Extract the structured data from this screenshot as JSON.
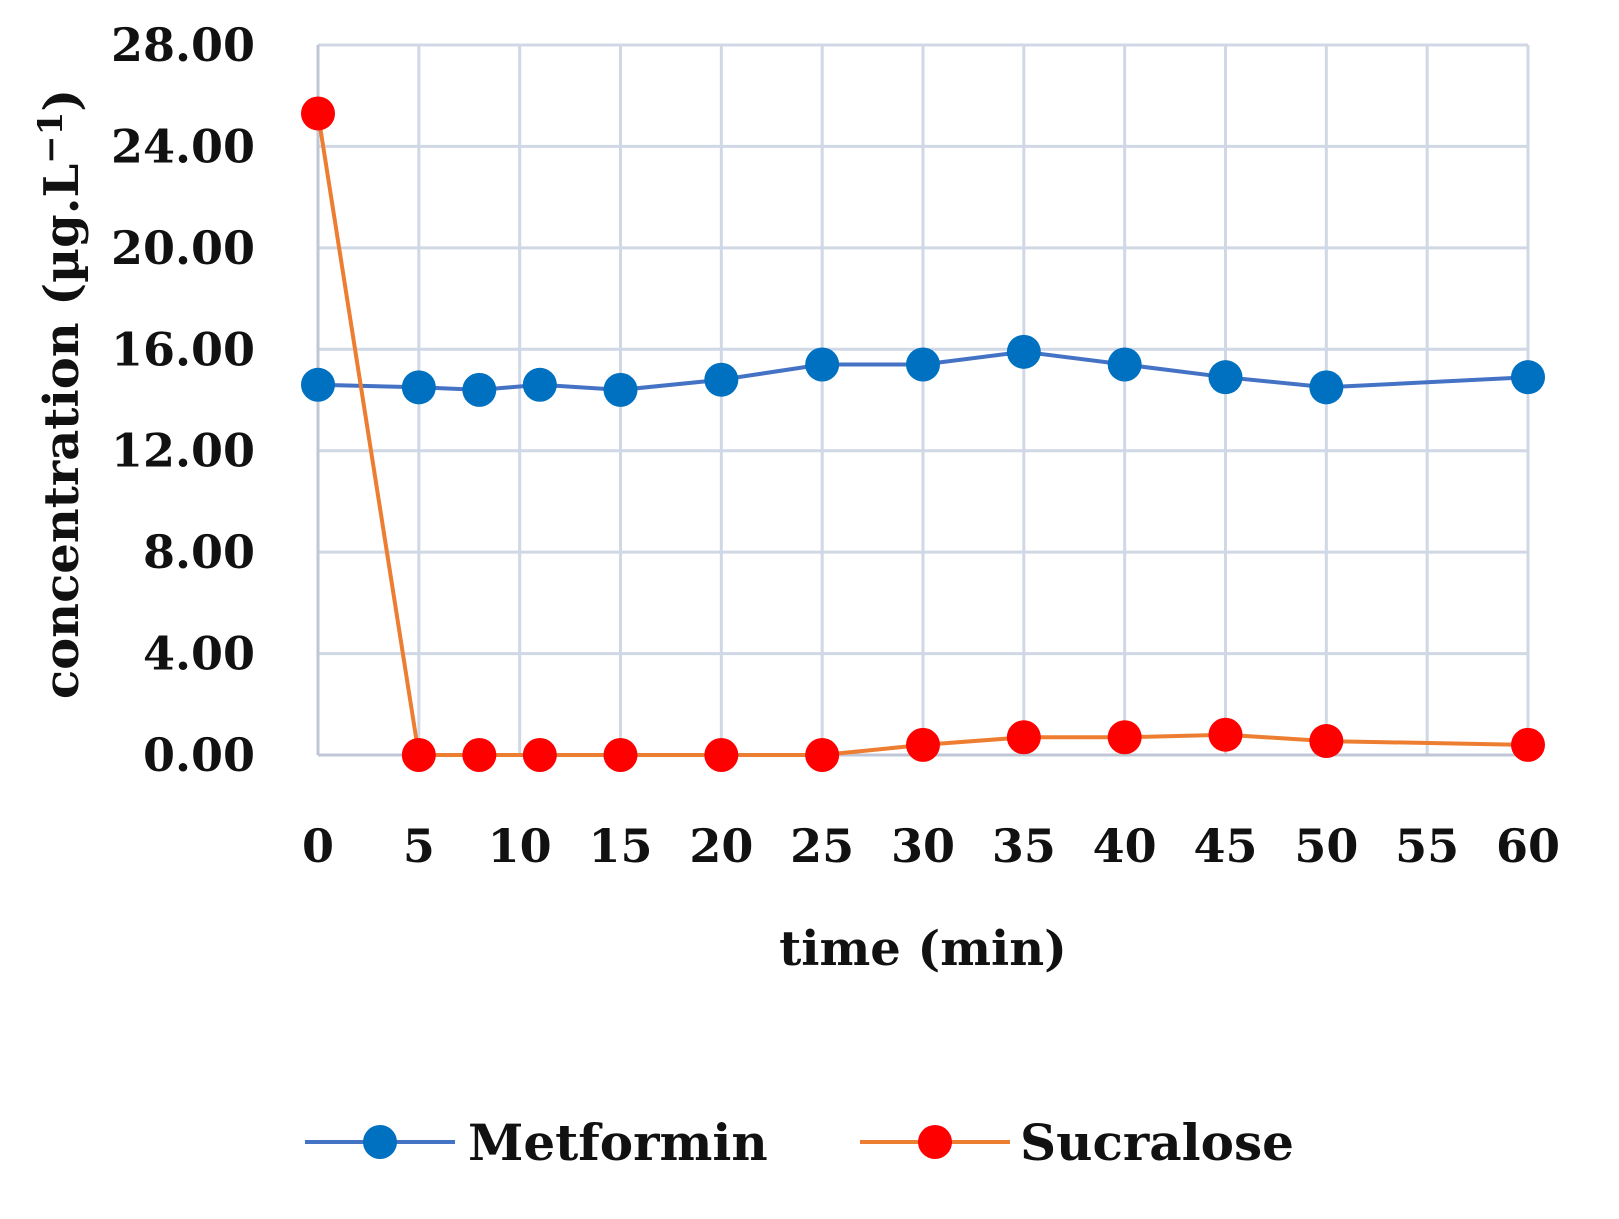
{
  "chart_data": {
    "type": "line",
    "xlabel": "time (min)",
    "ylabel": "concentration (µg.L",
    "ylabel_superscript": "−1",
    "ylabel_close": ")",
    "xlim": [
      0,
      60
    ],
    "ylim": [
      0,
      28
    ],
    "x_ticks": [
      "0",
      "5",
      "10",
      "15",
      "20",
      "25",
      "30",
      "35",
      "40",
      "45",
      "50",
      "55",
      "60"
    ],
    "y_ticks": [
      "0.00",
      "4.00",
      "8.00",
      "12.00",
      "16.00",
      "20.00",
      "24.00",
      "28.00"
    ],
    "grid": true,
    "legend_position": "bottom",
    "series": [
      {
        "name": "Metformin",
        "line_color": "#4472C4",
        "marker_color": "#0070C0",
        "x": [
          0,
          5,
          8,
          11,
          15,
          20,
          25,
          30,
          35,
          40,
          45,
          50,
          60
        ],
        "y": [
          14.6,
          14.5,
          14.4,
          14.6,
          14.4,
          14.8,
          15.4,
          15.4,
          15.9,
          15.4,
          14.9,
          14.5,
          14.9
        ]
      },
      {
        "name": "Sucralose",
        "line_color": "#ED7D31",
        "marker_color": "#FF0000",
        "x": [
          0,
          5,
          8,
          11,
          15,
          20,
          25,
          30,
          35,
          40,
          45,
          50,
          60
        ],
        "y": [
          25.3,
          0.0,
          0.0,
          0.0,
          0.0,
          0.0,
          0.0,
          0.4,
          0.7,
          0.7,
          0.8,
          0.55,
          0.4
        ]
      }
    ]
  }
}
